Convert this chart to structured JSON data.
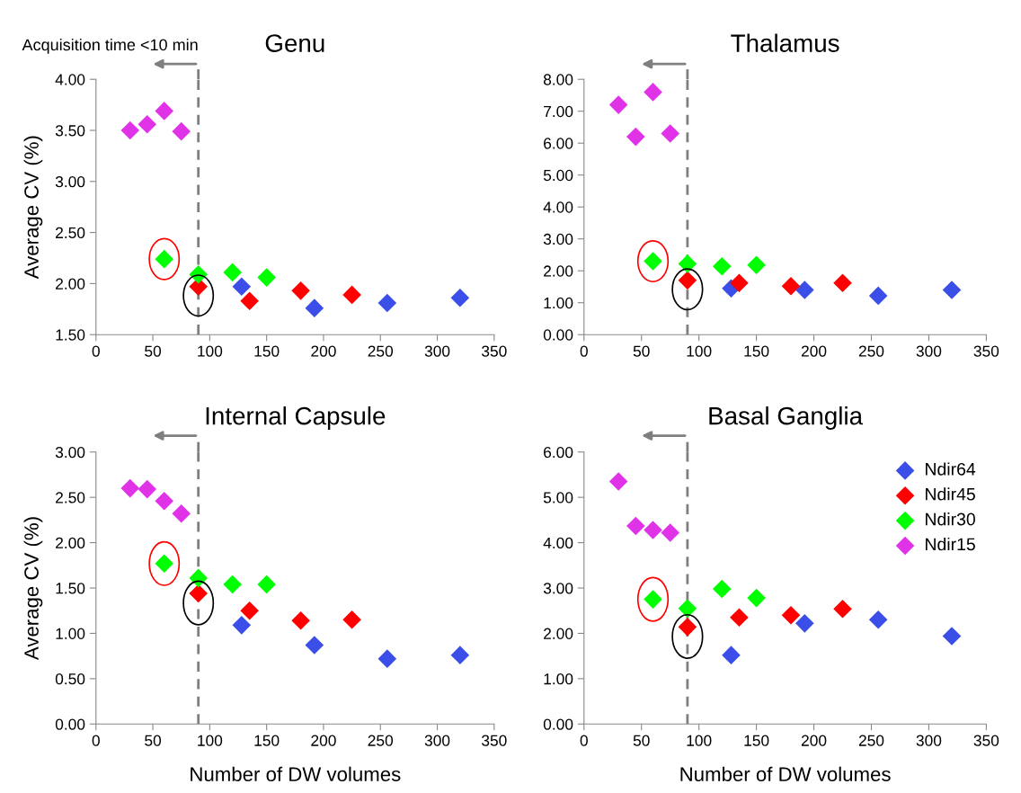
{
  "chart_data": [
    {
      "type": "scatter",
      "title": "Genu",
      "ylabel": "Average CV (%)",
      "marker": "diamond",
      "grid": false,
      "legend": false,
      "tick_labels": true,
      "xlim": [
        0,
        350
      ],
      "xticks": [
        0,
        50,
        100,
        150,
        200,
        250,
        300,
        350
      ],
      "ylim": [
        1.5,
        4.0
      ],
      "yticks": [
        {
          "value": 1.5,
          "label": "1.50"
        },
        {
          "value": 2.0,
          "label": "2.00"
        },
        {
          "value": 2.5,
          "label": "2.50"
        },
        {
          "value": 3.0,
          "label": "3.00"
        },
        {
          "value": 3.5,
          "label": "3.50"
        },
        {
          "value": 4.0,
          "label": "4.00"
        }
      ],
      "ref_lines": [
        {
          "axis": "x",
          "value": 90,
          "label": "Acquisition time <10 min",
          "color": "#7f7f7f",
          "line_style": "dashed"
        }
      ],
      "series": [
        {
          "color": "#3b4fe8",
          "x": [
            128,
            192,
            256,
            320
          ],
          "values": [
            1.97,
            1.76,
            1.81,
            1.86
          ]
        },
        {
          "color": "#ff0000",
          "x": [
            90,
            135,
            180,
            225
          ],
          "values": [
            1.97,
            1.83,
            1.93,
            1.89
          ]
        },
        {
          "color": "#00ff00",
          "x": [
            60,
            90,
            120,
            150
          ],
          "values": [
            2.24,
            2.09,
            2.11,
            2.06
          ]
        },
        {
          "color": "#e033e8",
          "x": [
            30,
            45,
            60,
            75
          ],
          "values": [
            3.5,
            3.56,
            3.69,
            3.49
          ]
        }
      ]
    },
    {
      "type": "scatter",
      "title": "Thalamus",
      "marker": "diamond",
      "grid": false,
      "legend": false,
      "xlim": [
        0,
        350
      ],
      "xticks": [
        0,
        50,
        100,
        150,
        200,
        250,
        300,
        350
      ],
      "ylim": [
        0,
        8
      ],
      "yticks": [
        {
          "value": 0,
          "label": "0.00"
        },
        {
          "value": 1,
          "label": "1.00"
        },
        {
          "value": 2,
          "label": "2.00"
        },
        {
          "value": 3,
          "label": "3.00"
        },
        {
          "value": 4,
          "label": "4.00"
        },
        {
          "value": 5,
          "label": "5.00"
        },
        {
          "value": 6,
          "label": "6.00"
        },
        {
          "value": 7,
          "label": "7.00"
        },
        {
          "value": 8,
          "label": "8.00"
        }
      ],
      "ref_lines": [
        {
          "axis": "x",
          "value": 90,
          "color": "#7f7f7f",
          "line_style": "dashed"
        }
      ],
      "series": [
        {
          "color": "#3b4fe8",
          "x": [
            128,
            192,
            256,
            320
          ],
          "values": [
            1.45,
            1.4,
            1.22,
            1.4
          ]
        },
        {
          "color": "#ff0000",
          "x": [
            90,
            135,
            180,
            225
          ],
          "values": [
            1.7,
            1.62,
            1.52,
            1.62
          ]
        },
        {
          "color": "#00ff00",
          "x": [
            60,
            90,
            120,
            150
          ],
          "values": [
            2.3,
            2.22,
            2.14,
            2.18
          ]
        },
        {
          "color": "#e033e8",
          "x": [
            30,
            45,
            60,
            75
          ],
          "values": [
            7.2,
            6.2,
            7.6,
            6.3
          ]
        }
      ]
    },
    {
      "type": "scatter",
      "title": "Internal Capsule",
      "xlabel": "Number of DW volumes",
      "ylabel": "Average CV (%)",
      "marker": "diamond",
      "grid": false,
      "legend": false,
      "xlim": [
        0,
        350
      ],
      "xticks": [
        0,
        50,
        100,
        150,
        200,
        250,
        300,
        350
      ],
      "ylim": [
        0,
        3
      ],
      "yticks": [
        {
          "value": 0,
          "label": "0.00"
        },
        {
          "value": 0.5,
          "label": "0.50"
        },
        {
          "value": 1.0,
          "label": "1.00"
        },
        {
          "value": 1.5,
          "label": "1.50"
        },
        {
          "value": 2.0,
          "label": "2.00"
        },
        {
          "value": 2.5,
          "label": "2.50"
        },
        {
          "value": 3.0,
          "label": "3.00"
        }
      ],
      "ref_lines": [
        {
          "axis": "x",
          "value": 90,
          "color": "#7f7f7f",
          "line_style": "dashed"
        }
      ],
      "series": [
        {
          "color": "#3b4fe8",
          "x": [
            128,
            192,
            256,
            320
          ],
          "values": [
            1.09,
            0.87,
            0.72,
            0.76
          ]
        },
        {
          "color": "#ff0000",
          "x": [
            90,
            135,
            180,
            225
          ],
          "values": [
            1.44,
            1.25,
            1.14,
            1.15
          ]
        },
        {
          "color": "#00ff00",
          "x": [
            60,
            90,
            120,
            150
          ],
          "values": [
            1.77,
            1.61,
            1.54,
            1.54
          ]
        },
        {
          "color": "#e033e8",
          "x": [
            30,
            45,
            60,
            75
          ],
          "values": [
            2.6,
            2.59,
            2.46,
            2.32
          ]
        }
      ]
    },
    {
      "type": "scatter",
      "title": "Basal Ganglia",
      "xlabel": "Number of DW volumes",
      "marker": "diamond",
      "grid": false,
      "legend": "top right",
      "xlim": [
        0,
        350
      ],
      "xticks": [
        0,
        50,
        100,
        150,
        200,
        250,
        300,
        350
      ],
      "ylim": [
        0,
        6
      ],
      "yticks": [
        {
          "value": 0,
          "label": "0.00"
        },
        {
          "value": 1,
          "label": "1.00"
        },
        {
          "value": 2,
          "label": "2.00"
        },
        {
          "value": 3,
          "label": "3.00"
        },
        {
          "value": 4,
          "label": "4.00"
        },
        {
          "value": 5,
          "label": "5.00"
        },
        {
          "value": 6,
          "label": "6.00"
        }
      ],
      "ref_lines": [
        {
          "axis": "x",
          "value": 90,
          "color": "#7f7f7f",
          "line_style": "dashed"
        }
      ],
      "series": [
        {
          "name": "Ndir64",
          "color": "#3b4fe8",
          "x": [
            128,
            192,
            256,
            320
          ],
          "values": [
            1.52,
            2.22,
            2.3,
            1.94
          ]
        },
        {
          "name": "Ndir45",
          "color": "#ff0000",
          "x": [
            90,
            135,
            180,
            225
          ],
          "values": [
            2.14,
            2.35,
            2.4,
            2.54
          ]
        },
        {
          "name": "Ndir30",
          "color": "#00ff00",
          "x": [
            60,
            90,
            120,
            150
          ],
          "values": [
            2.75,
            2.55,
            2.98,
            2.78
          ]
        },
        {
          "name": "Ndir15",
          "color": "#e033e8",
          "x": [
            30,
            45,
            60,
            75
          ],
          "values": [
            5.35,
            4.37,
            4.28,
            4.22
          ]
        }
      ]
    }
  ]
}
